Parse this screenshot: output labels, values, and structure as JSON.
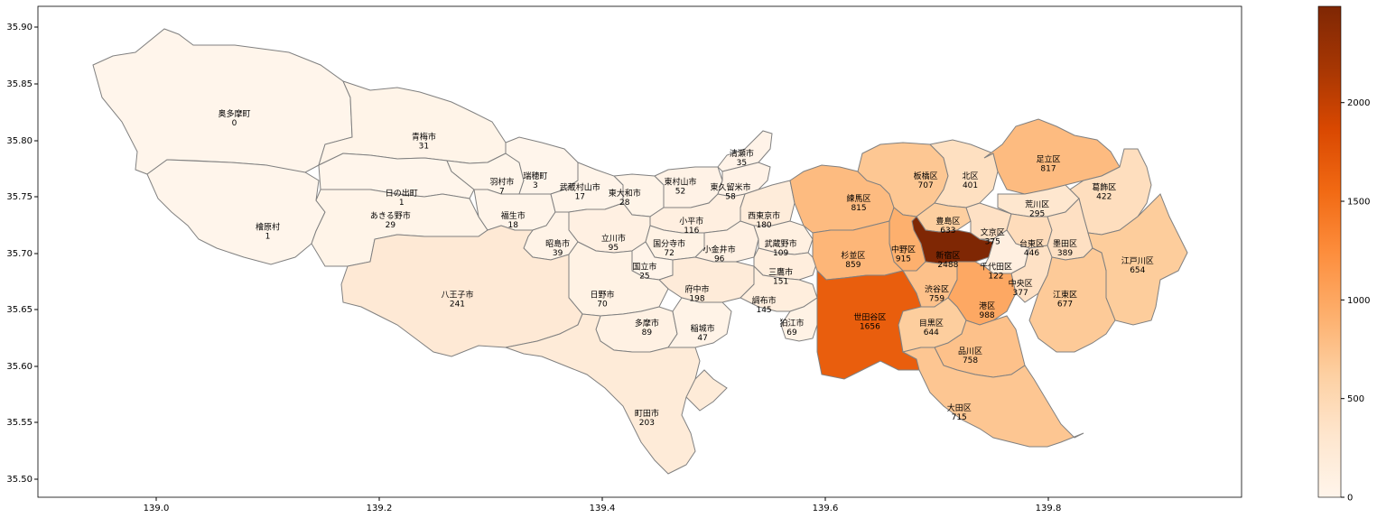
{
  "chart_data": {
    "type": "choropleth",
    "colormap": "Oranges",
    "edge_color": "#808080",
    "x_ticks": [
      "139.0",
      "139.2",
      "139.4",
      "139.6",
      "139.8"
    ],
    "x_tick_values": [
      139.0,
      139.2,
      139.4,
      139.6,
      139.8
    ],
    "y_ticks": [
      "35.90",
      "35.85",
      "35.80",
      "35.75",
      "35.70",
      "35.65",
      "35.60",
      "35.55",
      "35.50"
    ],
    "y_tick_values": [
      35.9,
      35.85,
      35.8,
      35.75,
      35.7,
      35.65,
      35.6,
      35.55,
      35.5
    ],
    "xlim": [
      138.895,
      139.965
    ],
    "ylim": [
      35.48,
      35.915
    ],
    "colorbar": {
      "range": [
        0,
        2488
      ],
      "ticks": [
        "0",
        "500",
        "1000",
        "1500",
        "2000"
      ],
      "tick_values": [
        0,
        500,
        1000,
        1500,
        2000
      ]
    },
    "regions": [
      {
        "name": "奥多摩町",
        "value": 0,
        "lon": 139.07,
        "lat": 35.82
      },
      {
        "name": "青梅市",
        "value": 31,
        "lon": 139.24,
        "lat": 35.8
      },
      {
        "name": "檜原村",
        "value": 1,
        "lon": 139.1,
        "lat": 35.72
      },
      {
        "name": "日の出町",
        "value": 1,
        "lon": 139.22,
        "lat": 35.75
      },
      {
        "name": "あきる野市",
        "value": 29,
        "lon": 139.21,
        "lat": 35.73
      },
      {
        "name": "羽村市",
        "value": 7,
        "lon": 139.31,
        "lat": 35.76
      },
      {
        "name": "瑞穂町",
        "value": 3,
        "lon": 139.34,
        "lat": 35.765
      },
      {
        "name": "福生市",
        "value": 18,
        "lon": 139.32,
        "lat": 35.73
      },
      {
        "name": "武蔵村山市",
        "value": 17,
        "lon": 139.38,
        "lat": 35.755
      },
      {
        "name": "東大和市",
        "value": 28,
        "lon": 139.42,
        "lat": 35.75
      },
      {
        "name": "東村山市",
        "value": 52,
        "lon": 139.47,
        "lat": 35.76
      },
      {
        "name": "清瀬市",
        "value": 35,
        "lon": 139.525,
        "lat": 35.785
      },
      {
        "name": "東久留米市",
        "value": 58,
        "lon": 139.515,
        "lat": 35.755
      },
      {
        "name": "西東京市",
        "value": 180,
        "lon": 139.545,
        "lat": 35.73
      },
      {
        "name": "小平市",
        "value": 116,
        "lon": 139.48,
        "lat": 35.725
      },
      {
        "name": "立川市",
        "value": 95,
        "lon": 139.41,
        "lat": 35.71
      },
      {
        "name": "昭島市",
        "value": 39,
        "lon": 139.36,
        "lat": 35.705
      },
      {
        "name": "国分寺市",
        "value": 72,
        "lon": 139.46,
        "lat": 35.705
      },
      {
        "name": "小金井市",
        "value": 96,
        "lon": 139.505,
        "lat": 35.7
      },
      {
        "name": "武蔵野市",
        "value": 109,
        "lon": 139.56,
        "lat": 35.705
      },
      {
        "name": "三鷹市",
        "value": 151,
        "lon": 139.56,
        "lat": 35.68
      },
      {
        "name": "国立市",
        "value": 25,
        "lon": 139.438,
        "lat": 35.685
      },
      {
        "name": "府中市",
        "value": 198,
        "lon": 139.485,
        "lat": 35.665
      },
      {
        "name": "日野市",
        "value": 70,
        "lon": 139.4,
        "lat": 35.66
      },
      {
        "name": "調布市",
        "value": 145,
        "lon": 139.545,
        "lat": 35.655
      },
      {
        "name": "八王子市",
        "value": 241,
        "lon": 139.27,
        "lat": 35.66
      },
      {
        "name": "多摩市",
        "value": 89,
        "lon": 139.44,
        "lat": 35.635
      },
      {
        "name": "稲城市",
        "value": 47,
        "lon": 139.49,
        "lat": 35.63
      },
      {
        "name": "狛江市",
        "value": 69,
        "lon": 139.57,
        "lat": 35.635
      },
      {
        "name": "町田市",
        "value": 203,
        "lon": 139.44,
        "lat": 35.555
      },
      {
        "name": "練馬区",
        "value": 815,
        "lon": 139.63,
        "lat": 35.745
      },
      {
        "name": "板橋区",
        "value": 707,
        "lon": 139.69,
        "lat": 35.765
      },
      {
        "name": "北区",
        "value": 401,
        "lon": 139.73,
        "lat": 35.765
      },
      {
        "name": "足立区",
        "value": 817,
        "lon": 139.8,
        "lat": 35.78
      },
      {
        "name": "葛飾区",
        "value": 422,
        "lon": 139.85,
        "lat": 35.755
      },
      {
        "name": "荒川区",
        "value": 295,
        "lon": 139.79,
        "lat": 35.74
      },
      {
        "name": "豊島区",
        "value": 633,
        "lon": 139.71,
        "lat": 35.725
      },
      {
        "name": "文京区",
        "value": 375,
        "lon": 139.75,
        "lat": 35.715
      },
      {
        "name": "台東区",
        "value": 446,
        "lon": 139.785,
        "lat": 35.705
      },
      {
        "name": "墨田区",
        "value": 389,
        "lon": 139.815,
        "lat": 35.705
      },
      {
        "name": "中野区",
        "value": 915,
        "lon": 139.67,
        "lat": 35.7
      },
      {
        "name": "新宿区",
        "value": 2488,
        "lon": 139.71,
        "lat": 35.695
      },
      {
        "name": "杉並区",
        "value": 859,
        "lon": 139.625,
        "lat": 35.695
      },
      {
        "name": "千代田区",
        "value": 122,
        "lon": 139.753,
        "lat": 35.685
      },
      {
        "name": "江戸川区",
        "value": 654,
        "lon": 139.88,
        "lat": 35.69
      },
      {
        "name": "中央区",
        "value": 377,
        "lon": 139.775,
        "lat": 35.67
      },
      {
        "name": "渋谷区",
        "value": 759,
        "lon": 139.7,
        "lat": 35.665
      },
      {
        "name": "港区",
        "value": 988,
        "lon": 139.745,
        "lat": 35.65
      },
      {
        "name": "江東区",
        "value": 677,
        "lon": 139.815,
        "lat": 35.66
      },
      {
        "name": "世田谷区",
        "value": 1656,
        "lon": 139.64,
        "lat": 35.64
      },
      {
        "name": "目黒区",
        "value": 644,
        "lon": 139.695,
        "lat": 35.635
      },
      {
        "name": "品川区",
        "value": 758,
        "lon": 139.73,
        "lat": 35.61
      },
      {
        "name": "大田区",
        "value": 715,
        "lon": 139.72,
        "lat": 35.56
      }
    ]
  }
}
